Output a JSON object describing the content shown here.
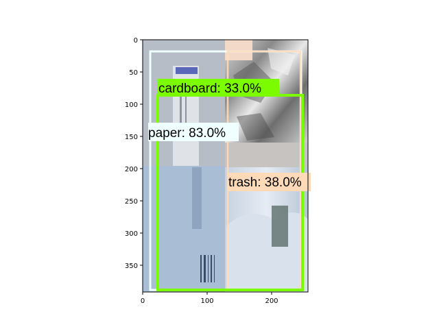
{
  "colors": {
    "cardboard": "#7cfc00",
    "paper": "#f0ffff",
    "trash": "#ffdab9"
  },
  "axes": {
    "x_ticks": [
      "0",
      "100",
      "200"
    ],
    "y_ticks": [
      "0",
      "50",
      "100",
      "150",
      "200",
      "250",
      "300",
      "350"
    ],
    "x_range": [
      0,
      256
    ],
    "y_range": [
      390,
      0
    ]
  },
  "detections": [
    {
      "class": "cardboard",
      "label": "cardboard: 33.0%",
      "confidence": 33.0
    },
    {
      "class": "paper",
      "label": "paper: 83.0%",
      "confidence": 83.0
    },
    {
      "class": "trash",
      "label": "trash: 38.0%",
      "confidence": 38.0
    }
  ]
}
